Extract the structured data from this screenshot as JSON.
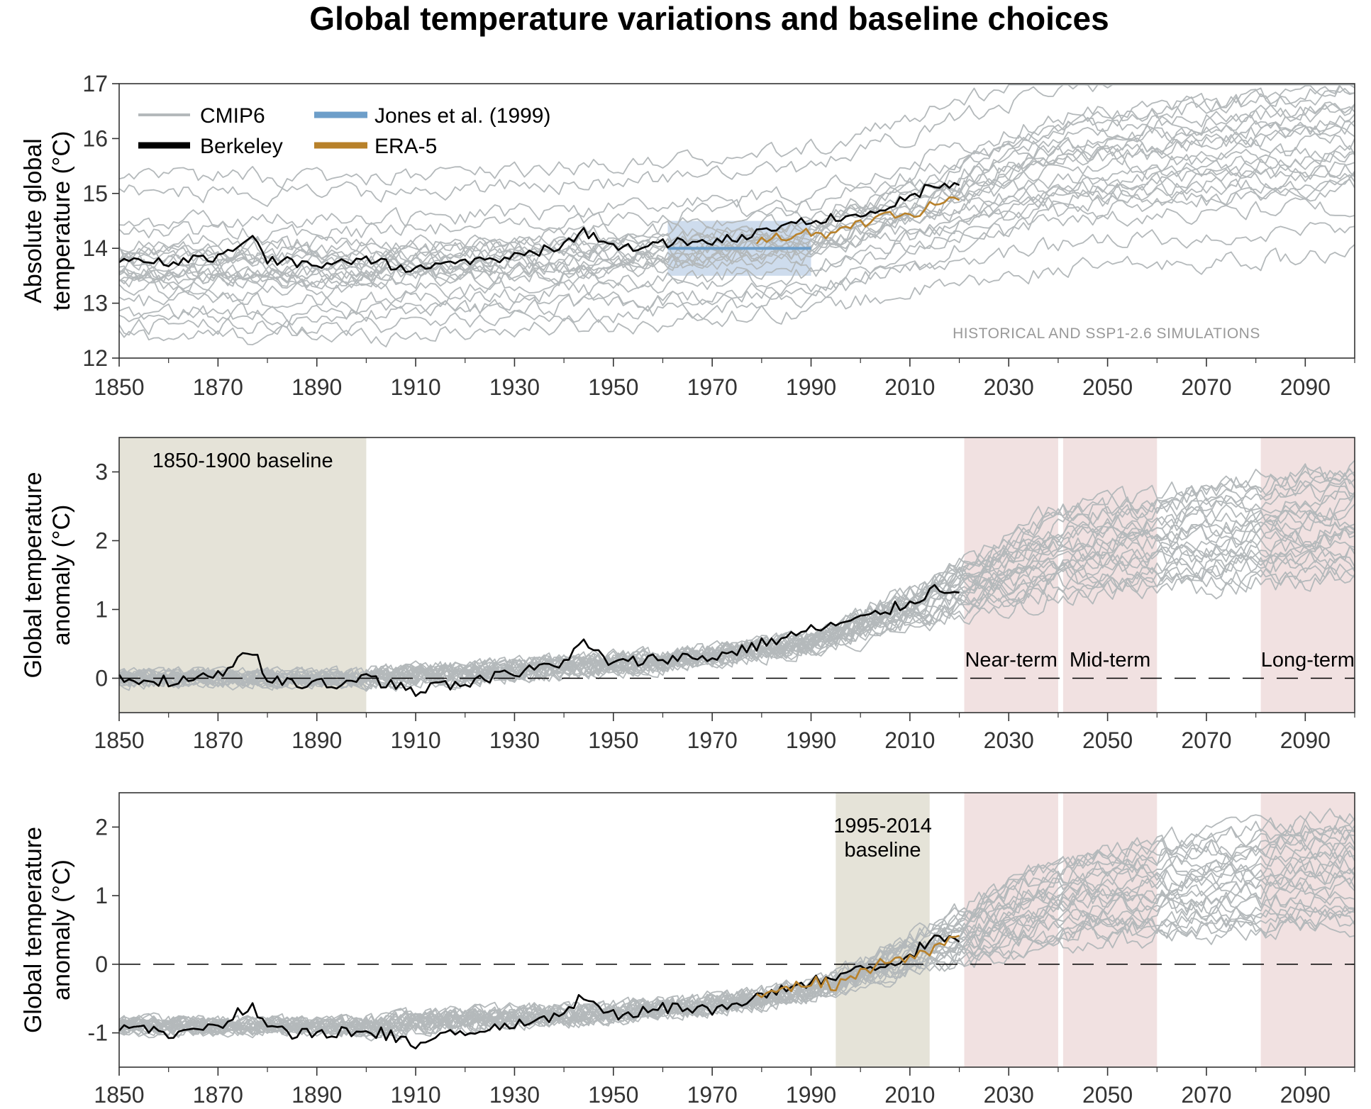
{
  "figure_title": "Global temperature variations and baseline choices",
  "colors": {
    "cmip6": "#b4b9bb",
    "berkeley": "#000000",
    "jones": "#6d9ec9",
    "jones_box": "#c5d6ea",
    "era5": "#b8812a",
    "baseline_shade": "#e5e3d8",
    "term_shade": "#f1e1e1"
  },
  "chart_data": [
    {
      "type": "line",
      "title": "",
      "ylabel_lines": [
        "Absolute global",
        "temperature  (°C)"
      ],
      "xlim": [
        1850,
        2100
      ],
      "ylim": [
        12,
        17
      ],
      "x_ticks": [
        "1850",
        "1870",
        "1890",
        "1910",
        "1930",
        "1950",
        "1970",
        "1990",
        "2010",
        "2030",
        "2050",
        "2070",
        "2090"
      ],
      "y_ticks": [
        "12",
        "13",
        "14",
        "15",
        "16",
        "17"
      ],
      "legend": [
        {
          "label": "CMIP6",
          "color": "#b4b9bb"
        },
        {
          "label": "Berkeley",
          "color": "#000000"
        },
        {
          "label": "Jones et al. (1999)",
          "color": "#6d9ec9"
        },
        {
          "label": "ERA-5",
          "color": "#b8812a"
        }
      ],
      "legend_position": "top-left",
      "annotation": "HISTORICAL AND SSP1-2.6 SIMULATIONS",
      "jones_reference": {
        "value": 14.0,
        "period": [
          1961,
          1990
        ],
        "range": [
          13.5,
          14.5
        ]
      },
      "cmip6_members": 25,
      "cmip6_offsets_at_1850": [
        12.4,
        12.8,
        13.2,
        13.4,
        13.5,
        13.6,
        13.6,
        13.7,
        13.8,
        13.9,
        14.0,
        14.1,
        14.3,
        14.5,
        15.0,
        15.3
      ],
      "cmip6_range_2090": [
        14.2,
        16.9
      ],
      "series": [
        {
          "name": "Berkeley",
          "x": [
            1850,
            1860,
            1870,
            1877,
            1880,
            1890,
            1900,
            1910,
            1920,
            1930,
            1940,
            1944,
            1950,
            1960,
            1970,
            1980,
            1990,
            2000,
            2010,
            2015,
            2020
          ],
          "y": [
            13.8,
            13.75,
            13.85,
            14.2,
            13.8,
            13.7,
            13.8,
            13.6,
            13.75,
            13.85,
            14.05,
            14.3,
            14.0,
            14.1,
            14.1,
            14.3,
            14.5,
            14.65,
            14.9,
            15.2,
            15.15
          ]
        },
        {
          "name": "ERA-5",
          "x": [
            1979,
            1985,
            1990,
            1995,
            2000,
            2005,
            2010,
            2015,
            2020
          ],
          "y": [
            14.15,
            14.2,
            14.3,
            14.25,
            14.45,
            14.6,
            14.6,
            14.8,
            14.95
          ]
        }
      ]
    },
    {
      "type": "line",
      "title": "",
      "ylabel_lines": [
        "Global temperature",
        "anomaly  (°C)"
      ],
      "xlim": [
        1850,
        2100
      ],
      "ylim": [
        -0.5,
        3.5
      ],
      "x_ticks": [
        "1850",
        "1870",
        "1890",
        "1910",
        "1930",
        "1950",
        "1970",
        "1990",
        "2010",
        "2030",
        "2050",
        "2070",
        "2090"
      ],
      "y_ticks": [
        "0",
        "1",
        "2",
        "3"
      ],
      "baseline_zero_dashed": true,
      "baseline_period": {
        "label": "1850-1900 baseline",
        "range": [
          1850,
          1900
        ]
      },
      "term_periods": [
        {
          "label": "Near-term",
          "range": [
            2021,
            2040
          ]
        },
        {
          "label": "Mid-term",
          "range": [
            2041,
            2060
          ]
        },
        {
          "label": "Long-term",
          "range": [
            2081,
            2100
          ]
        }
      ],
      "cmip6_range_2090": [
        1.2,
        2.9
      ],
      "series": [
        {
          "name": "Berkeley",
          "x": [
            1850,
            1860,
            1870,
            1877,
            1880,
            1890,
            1900,
            1910,
            1920,
            1930,
            1940,
            1944,
            1950,
            1960,
            1970,
            1980,
            1990,
            2000,
            2010,
            2015,
            2020
          ],
          "y": [
            0.0,
            -0.05,
            0.05,
            0.4,
            0.0,
            -0.1,
            0.0,
            -0.2,
            -0.05,
            0.05,
            0.25,
            0.5,
            0.2,
            0.3,
            0.3,
            0.5,
            0.7,
            0.85,
            1.1,
            1.3,
            1.3
          ]
        }
      ]
    },
    {
      "type": "line",
      "title": "",
      "ylabel_lines": [
        "Global temperature",
        "anomaly  (°C)"
      ],
      "xlim": [
        1850,
        2100
      ],
      "ylim": [
        -1.5,
        2.5
      ],
      "x_ticks": [
        "1850",
        "1870",
        "1890",
        "1910",
        "1930",
        "1950",
        "1970",
        "1990",
        "2010",
        "2030",
        "2050",
        "2070",
        "2090"
      ],
      "y_ticks": [
        "-1",
        "0",
        "1",
        "2"
      ],
      "baseline_zero_dashed": true,
      "baseline_period": {
        "label_lines": [
          "1995-2014",
          "baseline"
        ],
        "range": [
          1995,
          2014
        ]
      },
      "term_periods": [
        {
          "label": "",
          "range": [
            2021,
            2040
          ]
        },
        {
          "label": "",
          "range": [
            2041,
            2060
          ]
        },
        {
          "label": "",
          "range": [
            2081,
            2100
          ]
        }
      ],
      "cmip6_range_2090": [
        0.3,
        2.0
      ],
      "series": [
        {
          "name": "Berkeley",
          "x": [
            1850,
            1860,
            1870,
            1877,
            1880,
            1890,
            1900,
            1910,
            1920,
            1930,
            1940,
            1944,
            1950,
            1960,
            1970,
            1980,
            1990,
            2000,
            2010,
            2015,
            2020
          ],
          "y": [
            -0.95,
            -1.0,
            -0.9,
            -0.55,
            -0.95,
            -1.05,
            -0.95,
            -1.15,
            -1.0,
            -0.9,
            -0.7,
            -0.45,
            -0.75,
            -0.65,
            -0.65,
            -0.45,
            -0.25,
            -0.1,
            0.15,
            0.35,
            0.4
          ]
        },
        {
          "name": "ERA-5",
          "x": [
            1979,
            1985,
            1990,
            1995,
            2000,
            2005,
            2010,
            2015,
            2020
          ],
          "y": [
            -0.4,
            -0.35,
            -0.25,
            -0.3,
            -0.1,
            0.05,
            0.05,
            0.25,
            0.4
          ]
        }
      ]
    }
  ]
}
